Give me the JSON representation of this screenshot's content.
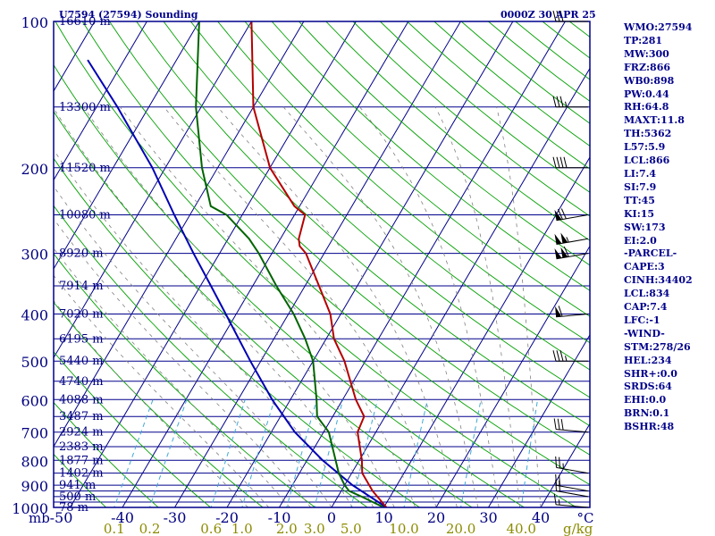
{
  "header": {
    "station": "U7594 (27594) Sounding",
    "time": "0000Z 30 APR 25"
  },
  "indices": [
    "WMO:27594",
    "TP:281",
    "MW:300",
    "FRZ:866",
    "WB0:898",
    "PW:0.44",
    "RH:64.8",
    "MAXT:11.8",
    "TH:5362",
    "L57:5.9",
    "LCL:866",
    "LI:7.4",
    "SI:7.9",
    "TT:45",
    "KI:15",
    "SW:173",
    "EI:2.0",
    "-PARCEL-",
    "CAPE:3",
    "CINH:34402",
    "LCL:834",
    "CAP:7.4",
    "LFC:-1",
    "-WIND-",
    "STM:278/26",
    "HEL:234",
    "SHR+:0.0",
    "SRDS:64",
    "EHI:0.0",
    "BRN:0.1",
    "BSHR:48"
  ],
  "colors": {
    "frame": "#00008b",
    "isobar": "#00008b",
    "isotherm": "#00008b",
    "dry_adiabat": "#00a000",
    "moist_adiabat": "#808080",
    "mixing_ratio": "#3fa9d6",
    "temperature": "#b40000",
    "dewpoint": "#006400",
    "parcel": "#0000b4",
    "label_temp": "#000080",
    "label_mr": "#8b8b00"
  },
  "chart_data": {
    "type": "skew-T log-P sounding",
    "title": "U7594 (27594) Sounding",
    "xlabel": "°C",
    "ylabel": "mb",
    "pressure_ticks": [
      100,
      200,
      300,
      400,
      500,
      600,
      700,
      800,
      900,
      1000
    ],
    "pressure_label": "mb",
    "temperature_ticks": [
      -50,
      -40,
      -30,
      -20,
      -10,
      0,
      10,
      20,
      30,
      40
    ],
    "mixing_ratio_ticks": [
      "0.1",
      "0.2",
      "0.6",
      "1.0",
      "2.0",
      "3.0",
      "5.0",
      "10.0",
      "20.0",
      "40.0"
    ],
    "mixing_ratio_unit": "g/kg",
    "height_labels": [
      {
        "p": 100,
        "text": "16610 m"
      },
      {
        "p": 150,
        "text": "13300 m"
      },
      {
        "p": 200,
        "text": "11520 m"
      },
      {
        "p": 250,
        "text": "10080 m"
      },
      {
        "p": 300,
        "text": "8920 m"
      },
      {
        "p": 350,
        "text": "7914 m"
      },
      {
        "p": 400,
        "text": "7020 m"
      },
      {
        "p": 450,
        "text": "6195 m"
      },
      {
        "p": 500,
        "text": "5440 m"
      },
      {
        "p": 550,
        "text": "4740 m"
      },
      {
        "p": 600,
        "text": "4088 m"
      },
      {
        "p": 650,
        "text": "3487 m"
      },
      {
        "p": 700,
        "text": "2924 m"
      },
      {
        "p": 750,
        "text": "2383 m"
      },
      {
        "p": 800,
        "text": "1877 m"
      },
      {
        "p": 850,
        "text": "1402 m"
      },
      {
        "p": 900,
        "text": "941 m"
      },
      {
        "p": 950,
        "text": "500 m"
      },
      {
        "p": 1000,
        "text": "78 m"
      }
    ],
    "temperature_profile": [
      {
        "p": 1000,
        "t": 10.5
      },
      {
        "p": 925,
        "t": 6.0
      },
      {
        "p": 850,
        "t": 2.0
      },
      {
        "p": 800,
        "t": 0.5
      },
      {
        "p": 700,
        "t": -3.5
      },
      {
        "p": 650,
        "t": -4.0
      },
      {
        "p": 600,
        "t": -7.5
      },
      {
        "p": 500,
        "t": -14.0
      },
      {
        "p": 450,
        "t": -18.5
      },
      {
        "p": 400,
        "t": -22.0
      },
      {
        "p": 300,
        "t": -33.5
      },
      {
        "p": 290,
        "t": -35.5
      },
      {
        "p": 280,
        "t": -36.5
      },
      {
        "p": 250,
        "t": -38.0
      },
      {
        "p": 240,
        "t": -41.0
      },
      {
        "p": 200,
        "t": -50.0
      },
      {
        "p": 150,
        "t": -60.0
      },
      {
        "p": 100,
        "t": -70.0
      }
    ],
    "dewpoint_profile": [
      {
        "p": 1000,
        "t": 10.0
      },
      {
        "p": 950,
        "t": 4.5
      },
      {
        "p": 925,
        "t": 1.5
      },
      {
        "p": 900,
        "t": 0.0
      },
      {
        "p": 850,
        "t": -2.5
      },
      {
        "p": 700,
        "t": -9.0
      },
      {
        "p": 650,
        "t": -13.0
      },
      {
        "p": 600,
        "t": -15.0
      },
      {
        "p": 500,
        "t": -20.0
      },
      {
        "p": 450,
        "t": -24.0
      },
      {
        "p": 400,
        "t": -29.0
      },
      {
        "p": 350,
        "t": -35.5
      },
      {
        "p": 300,
        "t": -42.5
      },
      {
        "p": 280,
        "t": -46.0
      },
      {
        "p": 250,
        "t": -53.0
      },
      {
        "p": 240,
        "t": -57.0
      },
      {
        "p": 200,
        "t": -63.0
      },
      {
        "p": 150,
        "t": -71.0
      },
      {
        "p": 100,
        "t": -80.0
      }
    ],
    "parcel_profile": [
      {
        "p": 1000,
        "t": 10.5
      },
      {
        "p": 900,
        "t": 1.5
      },
      {
        "p": 800,
        "t": -7.0
      },
      {
        "p": 700,
        "t": -15.5
      },
      {
        "p": 600,
        "t": -23.5
      },
      {
        "p": 500,
        "t": -32.0
      },
      {
        "p": 400,
        "t": -42.0
      },
      {
        "p": 350,
        "t": -48.0
      },
      {
        "p": 300,
        "t": -55.0
      },
      {
        "p": 250,
        "t": -63.0
      },
      {
        "p": 200,
        "t": -72.5
      },
      {
        "p": 150,
        "t": -86.0
      },
      {
        "p": 120,
        "t": -97.0
      }
    ],
    "wind_barbs": [
      {
        "p": 1000,
        "dir": 275,
        "kt": 15
      },
      {
        "p": 950,
        "dir": 280,
        "kt": 20
      },
      {
        "p": 925,
        "dir": 280,
        "kt": 20
      },
      {
        "p": 850,
        "dir": 280,
        "kt": 25
      },
      {
        "p": 700,
        "dir": 275,
        "kt": 30
      },
      {
        "p": 500,
        "dir": 270,
        "kt": 35
      },
      {
        "p": 400,
        "dir": 265,
        "kt": 60
      },
      {
        "p": 300,
        "dir": 260,
        "kt": 110
      },
      {
        "p": 280,
        "dir": 260,
        "kt": 105
      },
      {
        "p": 250,
        "dir": 260,
        "kt": 70
      },
      {
        "p": 200,
        "dir": 270,
        "kt": 40
      },
      {
        "p": 150,
        "dir": 270,
        "kt": 35
      },
      {
        "p": 100,
        "dir": 270,
        "kt": 30
      }
    ]
  }
}
